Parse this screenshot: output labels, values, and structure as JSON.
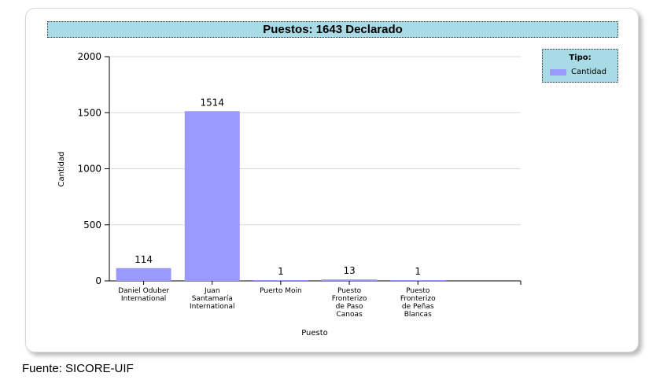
{
  "chart_data": {
    "type": "bar",
    "title": "Puestos: 1643 Declarado",
    "xlabel": "Puesto",
    "ylabel": "Cantidad",
    "ylim": [
      0,
      2000
    ],
    "yticks": [
      0,
      500,
      1000,
      1500,
      2000
    ],
    "grid": true,
    "legend": {
      "title": "Tipo:",
      "placement": "top-right"
    },
    "categories": [
      [
        "Daniel Oduber",
        "International"
      ],
      [
        "Juan",
        "Santamaría",
        "International"
      ],
      [
        "Puerto Moin"
      ],
      [
        "Puesto",
        "Fronterizo",
        "de Paso",
        "Canoas"
      ],
      [
        "Puesto",
        "Fronterizo",
        "de Peñas",
        "Blancas"
      ]
    ],
    "series": [
      {
        "name": "Cantidad",
        "color": "#9999ff",
        "values": [
          114,
          1514,
          1,
          13,
          1
        ]
      }
    ]
  },
  "footer": {
    "source": "Fuente: SICORE-UIF"
  }
}
